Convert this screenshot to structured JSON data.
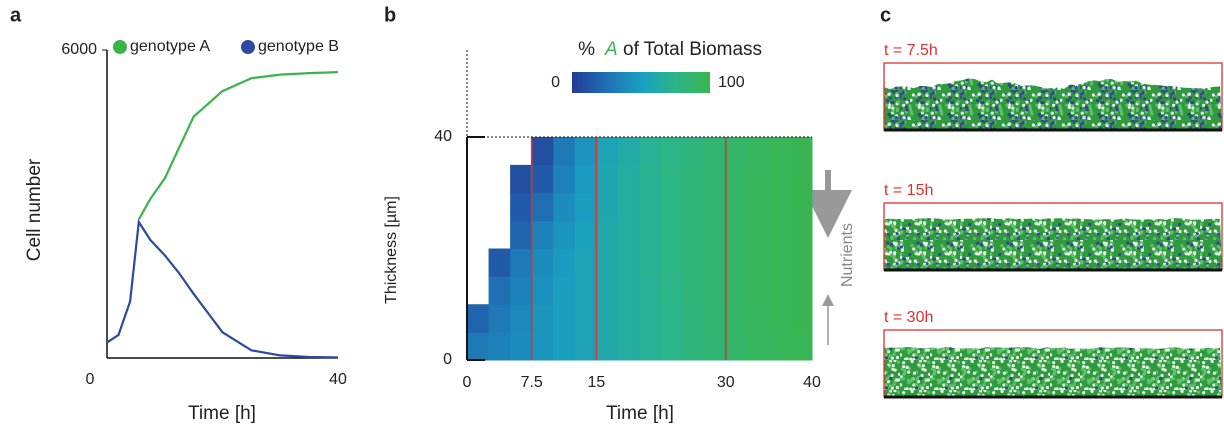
{
  "chart_data": [
    {
      "type": "line",
      "panel": "a",
      "ylabel": "Cell number",
      "xlabel": "Time [h]",
      "x": [
        0,
        2,
        4,
        5.5,
        7.5,
        10,
        12.5,
        15,
        20,
        25,
        30,
        35,
        40
      ],
      "series": [
        {
          "name": "genotype A",
          "color": "#3cb44b",
          "values": [
            null,
            null,
            null,
            2700,
            3100,
            3500,
            4100,
            4700,
            5200,
            5450,
            5520,
            5550,
            5570
          ]
        },
        {
          "name": "genotype B",
          "color": "#2c4aa0",
          "values": [
            300,
            450,
            1100,
            2650,
            2300,
            2000,
            1650,
            1250,
            500,
            150,
            50,
            20,
            10
          ]
        }
      ],
      "xlim": [
        0,
        40
      ],
      "xticks": [
        0,
        40
      ],
      "ylim": [
        0,
        6000
      ],
      "yticks": [
        6000
      ]
    },
    {
      "type": "heatmap",
      "panel": "b",
      "xlabel": "Time [h]",
      "ylabel": "Thickness [µm]",
      "colorbar_title_prefix": "%",
      "colorbar_title_genotype": "A",
      "colorbar_title_suffix": "of Total Biomass",
      "colorbar_ticks": [
        0,
        100
      ],
      "colormap": [
        "#253a94",
        "#1f6fb5",
        "#1a9fc0",
        "#2bb58a",
        "#3ab54a"
      ],
      "x_bins": [
        0,
        2.5,
        5,
        7.5,
        10,
        12.5,
        15,
        17.5,
        20,
        22.5,
        25,
        27.5,
        30,
        32.5,
        35,
        37.5,
        40
      ],
      "y_bins": [
        0,
        5,
        10,
        15,
        20,
        25,
        30,
        35,
        40
      ],
      "values": [
        [
          30,
          20,
          null,
          null,
          null,
          null,
          null,
          null
        ],
        [
          35,
          30,
          25,
          15,
          null,
          null,
          null,
          null
        ],
        [
          40,
          38,
          35,
          30,
          20,
          15,
          10,
          null
        ],
        [
          45,
          45,
          42,
          40,
          35,
          25,
          15,
          10
        ],
        [
          50,
          50,
          50,
          48,
          45,
          40,
          35,
          30
        ],
        [
          55,
          55,
          55,
          55,
          52,
          50,
          48,
          45
        ],
        [
          60,
          60,
          60,
          60,
          60,
          58,
          58,
          55
        ],
        [
          65,
          65,
          65,
          65,
          65,
          65,
          65,
          62
        ],
        [
          70,
          70,
          70,
          72,
          72,
          72,
          72,
          70
        ],
        [
          75,
          75,
          76,
          78,
          78,
          78,
          78,
          76
        ],
        [
          80,
          80,
          82,
          82,
          82,
          82,
          82,
          80
        ],
        [
          84,
          85,
          86,
          86,
          86,
          86,
          86,
          85
        ],
        [
          88,
          90,
          90,
          90,
          90,
          90,
          90,
          88
        ],
        [
          92,
          92,
          93,
          93,
          93,
          93,
          93,
          92
        ],
        [
          94,
          95,
          95,
          95,
          95,
          95,
          95,
          95
        ],
        [
          96,
          97,
          97,
          97,
          97,
          97,
          97,
          97
        ]
      ],
      "vlines": [
        7.5,
        15,
        30
      ],
      "vline_color": "#e03030",
      "annotation": "Nutrients",
      "xlim": [
        0,
        40
      ],
      "xticks": [
        0,
        7.5,
        15,
        30,
        40
      ],
      "ylim": [
        0,
        40
      ],
      "yticks": [
        0,
        40
      ]
    },
    {
      "type": "image",
      "panel": "c",
      "labels": [
        "t = 7.5h",
        "t = 15h",
        "t = 30h"
      ],
      "label_color": "#e03030"
    }
  ]
}
